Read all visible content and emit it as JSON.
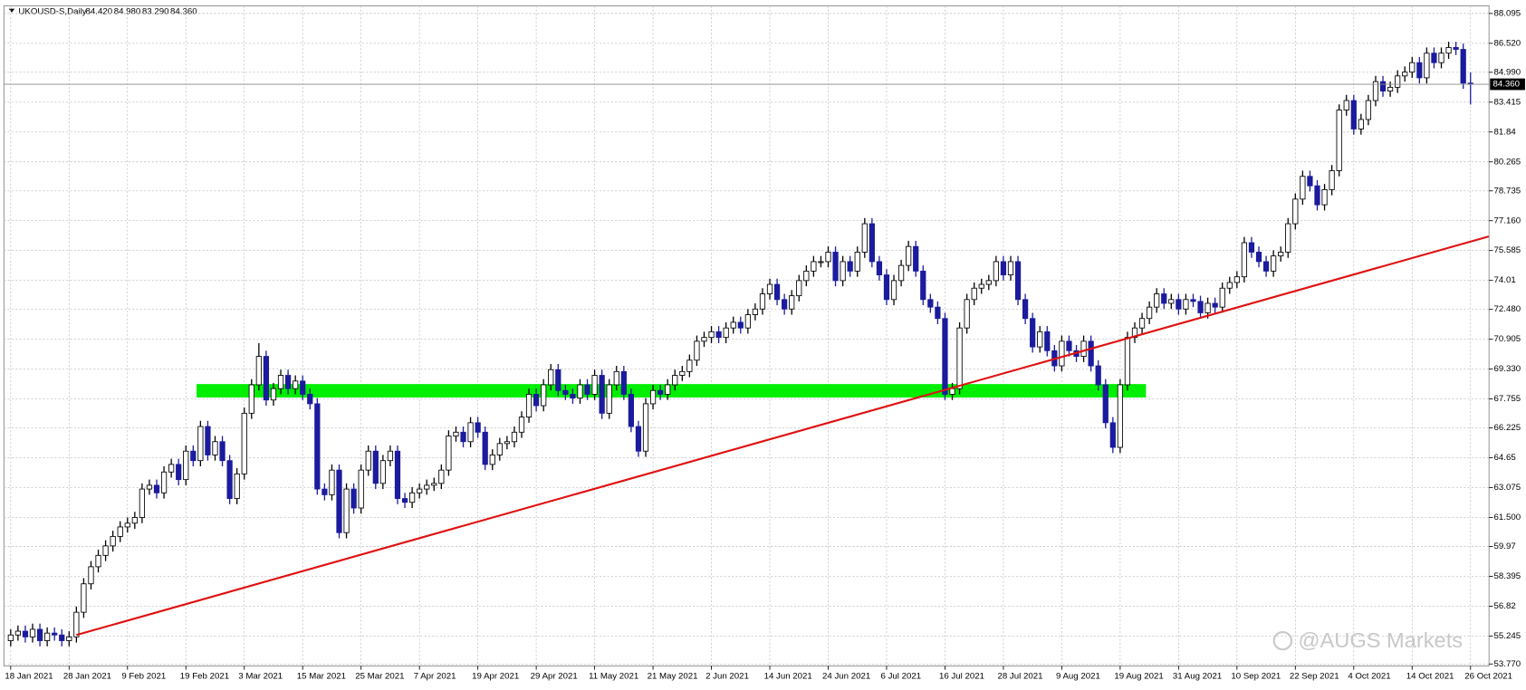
{
  "chart_data": {
    "type": "candlestick",
    "header": {
      "symbol": "UKOUSD-S,Daily",
      "ohlc": [
        "84.420",
        "84.980",
        "83.290",
        "84.360"
      ]
    },
    "watermark": "@AUGS Markets",
    "categories": [
      "18 Jan 2021",
      null,
      null,
      null,
      null,
      null,
      null,
      null,
      "28 Jan 2021",
      null,
      null,
      null,
      null,
      null,
      null,
      null,
      "9 Feb 2021",
      null,
      null,
      null,
      null,
      null,
      null,
      null,
      "19 Feb 2021",
      null,
      null,
      null,
      null,
      null,
      null,
      null,
      "3 Mar 2021",
      null,
      null,
      null,
      null,
      null,
      null,
      null,
      "15 Mar 2021",
      null,
      null,
      null,
      null,
      null,
      null,
      null,
      "25 Mar 2021",
      null,
      null,
      null,
      null,
      null,
      null,
      null,
      "7 Apr 2021",
      null,
      null,
      null,
      null,
      null,
      null,
      null,
      "19 Apr 2021",
      null,
      null,
      null,
      null,
      null,
      null,
      null,
      "29 Apr 2021",
      null,
      null,
      null,
      null,
      null,
      null,
      null,
      "11 May 2021",
      null,
      null,
      null,
      null,
      null,
      null,
      null,
      "21 May 2021",
      null,
      null,
      null,
      null,
      null,
      null,
      null,
      "2 Jun 2021",
      null,
      null,
      null,
      null,
      null,
      null,
      null,
      "14 Jun 2021",
      null,
      null,
      null,
      null,
      null,
      null,
      null,
      "24 Jun 2021",
      null,
      null,
      null,
      null,
      null,
      null,
      null,
      "6 Jul 2021",
      null,
      null,
      null,
      null,
      null,
      null,
      null,
      "16 Jul 2021",
      null,
      null,
      null,
      null,
      null,
      null,
      null,
      "28 Jul 2021",
      null,
      null,
      null,
      null,
      null,
      null,
      null,
      "9 Aug 2021",
      null,
      null,
      null,
      null,
      null,
      null,
      null,
      "19 Aug 2021",
      null,
      null,
      null,
      null,
      null,
      null,
      null,
      "31 Aug 2021",
      null,
      null,
      null,
      null,
      null,
      null,
      null,
      "10 Sep 2021",
      null,
      null,
      null,
      null,
      null,
      null,
      null,
      "22 Sep 2021",
      null,
      null,
      null,
      null,
      null,
      null,
      null,
      "4 Oct 2021",
      null,
      null,
      null,
      null,
      null,
      null,
      null,
      "14 Oct 2021",
      null,
      null,
      null,
      null,
      null,
      null,
      null,
      "26 Oct 2021"
    ],
    "open": [
      55.0,
      55.3,
      55.5,
      55.2,
      55.6,
      55.0,
      55.4,
      55.3,
      55.0,
      55.2,
      56.5,
      58.0,
      58.9,
      59.5,
      60.0,
      60.5,
      61.0,
      61.2,
      61.5,
      63.0,
      63.2,
      62.8,
      63.9,
      64.3,
      63.5,
      65.0,
      64.5,
      66.3,
      64.8,
      65.5,
      64.5,
      62.5,
      63.8,
      67.0,
      68.5,
      70.0,
      67.7,
      68.3,
      69.0,
      68.3,
      68.7,
      68.0,
      67.5,
      63.0,
      62.7,
      64.0,
      60.7,
      63.0,
      62.0,
      64.0,
      65.0,
      63.3,
      64.5,
      65.0,
      62.5,
      62.3,
      62.8,
      63.0,
      63.2,
      63.3,
      64.0,
      65.8,
      66.0,
      65.5,
      66.5,
      66.0,
      64.3,
      64.8,
      65.4,
      65.5,
      66.0,
      66.8,
      68.0,
      67.4,
      68.5,
      69.3,
      68.2,
      68.0,
      67.8,
      68.5,
      68.0,
      69.0,
      67.0,
      68.5,
      69.2,
      68.0,
      66.3,
      65.0,
      67.5,
      68.2,
      68.0,
      68.5,
      69.0,
      69.2,
      69.8,
      70.8,
      71.0,
      71.3,
      71.0,
      71.5,
      71.8,
      71.5,
      72.2,
      72.5,
      73.3,
      73.8,
      73.0,
      72.5,
      73.2,
      74.0,
      74.5,
      75.0,
      75.0,
      75.5,
      74.0,
      75.0,
      74.5,
      75.5,
      77.0,
      75.0,
      74.3,
      73.0,
      74.0,
      74.8,
      75.8,
      74.5,
      73.0,
      72.6,
      72.0,
      68.0,
      68.3,
      71.5,
      73.0,
      73.6,
      73.8,
      74.0,
      75.0,
      74.3,
      75.0,
      73.0,
      72.0,
      70.5,
      71.3,
      70.3,
      69.5,
      70.8,
      70.3,
      70.0,
      70.8,
      69.5,
      68.5,
      66.5,
      65.2,
      68.5,
      71.0,
      71.5,
      72.0,
      72.6,
      73.3,
      72.8,
      73.0,
      72.5,
      73.0,
      72.9,
      72.3,
      72.8,
      72.6,
      73.6,
      73.9,
      74.2,
      76.0,
      75.5,
      75.0,
      74.5,
      75.3,
      75.5,
      77.0,
      78.3,
      79.5,
      79.0,
      78.0,
      78.8,
      79.8,
      83.0,
      83.5,
      82.0,
      82.5,
      83.5,
      84.5,
      84.0,
      84.2,
      84.8,
      85.0,
      85.5,
      84.7,
      86.0,
      85.5,
      86.0,
      86.3,
      86.2,
      84.42
    ],
    "high": [
      55.6,
      55.8,
      55.8,
      55.9,
      55.9,
      55.7,
      55.7,
      55.6,
      55.5,
      56.8,
      58.3,
      59.2,
      59.8,
      60.3,
      60.8,
      61.3,
      61.5,
      61.8,
      63.3,
      63.5,
      63.5,
      64.2,
      64.6,
      64.6,
      65.3,
      65.3,
      66.6,
      66.6,
      65.8,
      65.8,
      64.8,
      64.1,
      67.3,
      68.8,
      70.7,
      70.3,
      68.6,
      69.3,
      69.3,
      69.0,
      69.0,
      68.3,
      67.8,
      63.3,
      64.3,
      64.3,
      63.3,
      63.3,
      64.3,
      65.3,
      65.3,
      64.8,
      65.3,
      65.3,
      62.8,
      63.1,
      63.3,
      63.5,
      63.6,
      64.3,
      66.1,
      66.3,
      66.3,
      66.8,
      66.8,
      66.3,
      65.1,
      65.7,
      65.8,
      66.3,
      67.1,
      68.3,
      68.3,
      68.8,
      69.6,
      69.6,
      68.5,
      68.3,
      68.8,
      68.8,
      69.3,
      69.3,
      68.8,
      69.5,
      69.5,
      68.3,
      66.6,
      67.8,
      68.5,
      68.5,
      68.8,
      69.3,
      69.5,
      70.1,
      71.1,
      71.3,
      71.6,
      71.6,
      71.8,
      72.1,
      72.1,
      72.5,
      72.8,
      73.6,
      74.1,
      74.1,
      73.3,
      73.5,
      74.3,
      74.8,
      75.3,
      75.3,
      75.8,
      75.8,
      75.3,
      75.3,
      75.8,
      77.3,
      77.3,
      75.3,
      74.6,
      74.3,
      75.1,
      76.1,
      76.1,
      74.8,
      73.3,
      72.9,
      72.3,
      68.6,
      71.8,
      73.3,
      73.9,
      74.1,
      74.3,
      75.3,
      75.3,
      75.3,
      75.3,
      73.3,
      72.3,
      71.6,
      71.6,
      70.6,
      71.1,
      71.1,
      70.6,
      71.1,
      71.1,
      69.8,
      68.8,
      66.8,
      68.8,
      71.3,
      71.8,
      72.3,
      72.9,
      73.6,
      73.6,
      73.3,
      73.3,
      73.3,
      73.3,
      73.2,
      73.1,
      73.1,
      73.9,
      74.2,
      74.5,
      76.3,
      76.3,
      75.8,
      75.3,
      75.6,
      75.8,
      77.3,
      78.6,
      79.8,
      79.8,
      79.3,
      79.1,
      80.1,
      83.3,
      83.8,
      83.8,
      82.8,
      83.8,
      84.8,
      84.8,
      84.5,
      85.1,
      85.3,
      85.8,
      85.8,
      86.3,
      86.3,
      86.3,
      86.6,
      86.6,
      86.5,
      84.98
    ],
    "low": [
      54.7,
      55.0,
      54.9,
      54.9,
      54.7,
      54.7,
      55.0,
      54.7,
      54.7,
      54.9,
      56.2,
      57.7,
      58.6,
      59.2,
      59.7,
      60.2,
      60.7,
      60.9,
      61.2,
      62.7,
      62.5,
      62.5,
      63.6,
      63.2,
      63.2,
      64.2,
      64.2,
      64.5,
      64.5,
      64.2,
      62.2,
      62.2,
      63.5,
      66.7,
      68.2,
      67.4,
      67.4,
      68.0,
      68.0,
      68.0,
      67.7,
      67.2,
      62.7,
      62.4,
      62.4,
      60.4,
      60.4,
      61.7,
      61.7,
      63.7,
      63.0,
      63.0,
      64.2,
      62.2,
      62.0,
      62.0,
      62.5,
      62.7,
      62.9,
      63.0,
      63.7,
      65.5,
      65.2,
      65.2,
      65.7,
      64.0,
      64.0,
      64.5,
      65.1,
      65.2,
      65.7,
      66.5,
      67.1,
      67.1,
      68.2,
      67.9,
      67.7,
      67.5,
      67.5,
      67.7,
      67.7,
      66.7,
      66.7,
      68.2,
      67.7,
      66.0,
      64.7,
      64.7,
      67.2,
      67.7,
      67.7,
      68.2,
      68.7,
      68.9,
      69.5,
      70.5,
      70.7,
      70.7,
      70.7,
      71.2,
      71.2,
      71.2,
      71.9,
      72.2,
      73.0,
      72.7,
      72.2,
      72.2,
      72.9,
      73.7,
      74.2,
      74.7,
      74.7,
      73.7,
      73.7,
      74.2,
      74.2,
      75.2,
      74.7,
      74.0,
      72.7,
      72.7,
      73.7,
      74.5,
      74.2,
      72.7,
      72.3,
      71.7,
      67.7,
      67.7,
      68.0,
      71.2,
      72.7,
      73.3,
      73.5,
      73.7,
      74.0,
      74.0,
      72.7,
      71.7,
      70.2,
      70.2,
      70.0,
      69.2,
      69.2,
      70.0,
      69.7,
      69.7,
      69.2,
      68.2,
      66.2,
      64.9,
      64.9,
      68.2,
      70.7,
      71.2,
      71.7,
      72.3,
      72.5,
      72.5,
      72.2,
      72.2,
      72.6,
      72.0,
      72.0,
      72.3,
      72.3,
      73.3,
      73.6,
      73.9,
      75.2,
      74.7,
      74.2,
      74.2,
      75.0,
      75.2,
      76.7,
      78.0,
      78.7,
      77.7,
      77.7,
      78.5,
      79.5,
      82.7,
      81.7,
      81.7,
      82.2,
      83.2,
      83.7,
      83.7,
      83.9,
      84.5,
      84.7,
      84.4,
      84.4,
      85.2,
      85.2,
      85.7,
      85.9,
      84.12,
      83.29
    ],
    "close": [
      55.3,
      55.5,
      55.2,
      55.6,
      55.0,
      55.4,
      55.3,
      55.0,
      55.2,
      56.5,
      58.0,
      58.9,
      59.5,
      60.0,
      60.5,
      61.0,
      61.2,
      61.5,
      63.0,
      63.2,
      62.8,
      63.9,
      64.3,
      63.5,
      65.0,
      64.5,
      66.3,
      64.8,
      65.5,
      64.5,
      62.5,
      63.8,
      67.0,
      68.5,
      70.0,
      67.7,
      68.3,
      69.0,
      68.3,
      68.7,
      68.0,
      67.5,
      63.0,
      62.7,
      64.0,
      60.7,
      63.0,
      62.0,
      64.0,
      65.0,
      63.3,
      64.5,
      65.0,
      62.5,
      62.3,
      62.8,
      63.0,
      63.2,
      63.3,
      64.0,
      65.8,
      66.0,
      65.5,
      66.5,
      66.0,
      64.3,
      64.8,
      65.4,
      65.5,
      66.0,
      66.8,
      68.0,
      67.4,
      68.5,
      69.3,
      68.2,
      68.0,
      67.8,
      68.5,
      68.0,
      69.0,
      67.0,
      68.5,
      69.2,
      68.0,
      66.3,
      65.0,
      67.5,
      68.2,
      68.0,
      68.5,
      69.0,
      69.2,
      69.8,
      70.8,
      71.0,
      71.3,
      71.0,
      71.5,
      71.8,
      71.5,
      72.2,
      72.5,
      73.3,
      73.8,
      73.0,
      72.5,
      73.2,
      74.0,
      74.5,
      75.0,
      75.0,
      75.5,
      74.0,
      75.0,
      74.5,
      75.5,
      77.0,
      75.0,
      74.3,
      73.0,
      74.0,
      74.8,
      75.8,
      74.5,
      73.0,
      72.6,
      72.0,
      68.0,
      68.3,
      71.5,
      73.0,
      73.6,
      73.8,
      74.0,
      75.0,
      74.3,
      75.0,
      73.0,
      72.0,
      70.5,
      71.3,
      70.3,
      69.5,
      70.8,
      70.3,
      70.0,
      70.8,
      69.5,
      68.5,
      66.5,
      65.2,
      68.5,
      71.0,
      71.5,
      72.0,
      72.6,
      73.3,
      72.8,
      73.0,
      72.5,
      73.0,
      72.9,
      72.3,
      72.8,
      72.6,
      73.6,
      73.9,
      74.2,
      76.0,
      75.5,
      75.0,
      74.5,
      75.3,
      75.5,
      77.0,
      78.3,
      79.5,
      79.0,
      78.0,
      78.8,
      79.8,
      83.0,
      83.5,
      82.0,
      82.5,
      83.5,
      84.5,
      84.0,
      84.2,
      84.8,
      85.0,
      85.5,
      84.7,
      86.0,
      85.5,
      86.0,
      86.3,
      86.2,
      84.42,
      84.36
    ],
    "up_color": "#ffffff",
    "down_color": "#1b1b9e",
    "outline": "#000000",
    "ylim": [
      53.67,
      88.5
    ],
    "yticks": [
      {
        "value": 53.77,
        "label": "53.770"
      },
      55.245,
      56.82,
      58.395,
      59.97,
      {
        "value": 61.5,
        "label": "61.500"
      },
      63.075,
      64.65,
      66.225,
      67.755,
      {
        "value": 69.33,
        "label": "69.330"
      },
      70.905,
      {
        "value": 72.48,
        "label": "72.480"
      },
      74.01,
      75.585,
      {
        "value": 77.16,
        "label": "77.160"
      },
      78.735,
      80.265,
      81.84,
      83.415,
      {
        "value": 84.99,
        "label": "84.990"
      },
      {
        "value": 86.52,
        "label": "86.520"
      },
      88.095
    ],
    "grid": true,
    "last_price": {
      "value": 84.36,
      "label": "84.360"
    },
    "trendline": {
      "color": "#e01010",
      "from": [
        9,
        55.3
      ],
      "to": [
        202.5,
        76.33
      ]
    },
    "zone": {
      "color": "#00ee00",
      "from": 26,
      "to": 155,
      "low": 67.83,
      "high": 68.54
    }
  }
}
